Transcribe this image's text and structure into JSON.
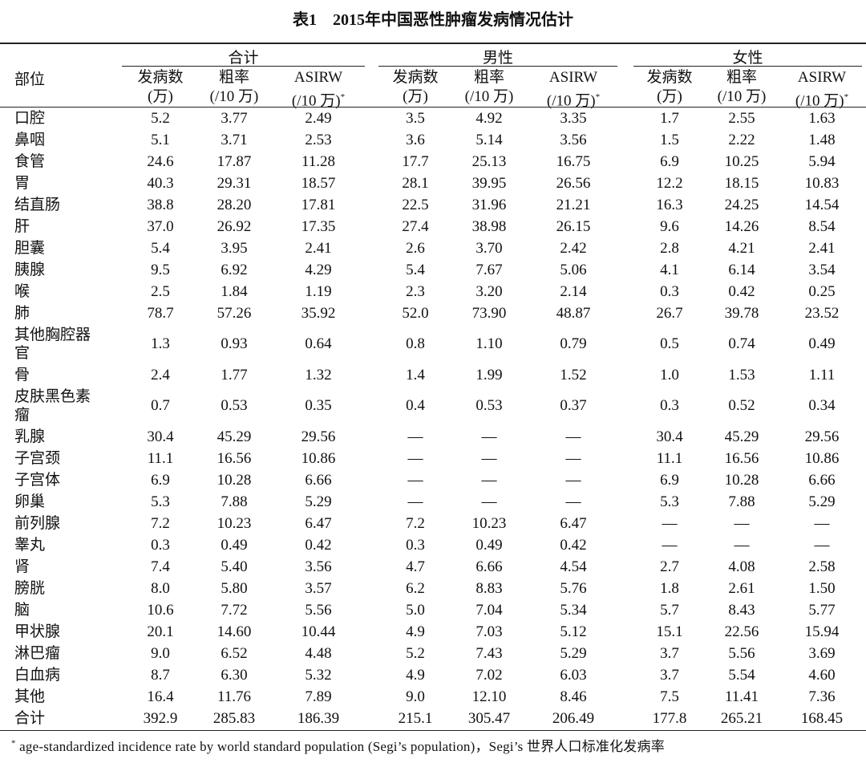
{
  "title": "表1　2015年中国恶性肿瘤发病情况估计",
  "table": {
    "row_header": "部位",
    "groups": [
      "合计",
      "男性",
      "女性"
    ],
    "columns": [
      {
        "top": "发病数",
        "bottom": "(万)"
      },
      {
        "top": "粗率",
        "bottom": "(/10 万)"
      },
      {
        "top": "ASIRW",
        "bottom": "(/10 万)",
        "mark": "*"
      }
    ],
    "rows": [
      {
        "label": "口腔",
        "values": [
          "5.2",
          "3.77",
          "2.49",
          "3.5",
          "4.92",
          "3.35",
          "1.7",
          "2.55",
          "1.63"
        ]
      },
      {
        "label": "鼻咽",
        "values": [
          "5.1",
          "3.71",
          "2.53",
          "3.6",
          "5.14",
          "3.56",
          "1.5",
          "2.22",
          "1.48"
        ]
      },
      {
        "label": "食管",
        "values": [
          "24.6",
          "17.87",
          "11.28",
          "17.7",
          "25.13",
          "16.75",
          "6.9",
          "10.25",
          "5.94"
        ]
      },
      {
        "label": "胃",
        "values": [
          "40.3",
          "29.31",
          "18.57",
          "28.1",
          "39.95",
          "26.56",
          "12.2",
          "18.15",
          "10.83"
        ]
      },
      {
        "label": "结直肠",
        "values": [
          "38.8",
          "28.20",
          "17.81",
          "22.5",
          "31.96",
          "21.21",
          "16.3",
          "24.25",
          "14.54"
        ]
      },
      {
        "label": "肝",
        "values": [
          "37.0",
          "26.92",
          "17.35",
          "27.4",
          "38.98",
          "26.15",
          "9.6",
          "14.26",
          "8.54"
        ]
      },
      {
        "label": "胆囊",
        "values": [
          "5.4",
          "3.95",
          "2.41",
          "2.6",
          "3.70",
          "2.42",
          "2.8",
          "4.21",
          "2.41"
        ]
      },
      {
        "label": "胰腺",
        "values": [
          "9.5",
          "6.92",
          "4.29",
          "5.4",
          "7.67",
          "5.06",
          "4.1",
          "6.14",
          "3.54"
        ]
      },
      {
        "label": "喉",
        "values": [
          "2.5",
          "1.84",
          "1.19",
          "2.3",
          "3.20",
          "2.14",
          "0.3",
          "0.42",
          "0.25"
        ]
      },
      {
        "label": "肺",
        "values": [
          "78.7",
          "57.26",
          "35.92",
          "52.0",
          "73.90",
          "48.87",
          "26.7",
          "39.78",
          "23.52"
        ]
      },
      {
        "label": "其他胸腔器官",
        "values": [
          "1.3",
          "0.93",
          "0.64",
          "0.8",
          "1.10",
          "0.79",
          "0.5",
          "0.74",
          "0.49"
        ]
      },
      {
        "label": "骨",
        "values": [
          "2.4",
          "1.77",
          "1.32",
          "1.4",
          "1.99",
          "1.52",
          "1.0",
          "1.53",
          "1.11"
        ]
      },
      {
        "label": "皮肤黑色素瘤",
        "values": [
          "0.7",
          "0.53",
          "0.35",
          "0.4",
          "0.53",
          "0.37",
          "0.3",
          "0.52",
          "0.34"
        ]
      },
      {
        "label": "乳腺",
        "values": [
          "30.4",
          "45.29",
          "29.56",
          "—",
          "—",
          "—",
          "30.4",
          "45.29",
          "29.56"
        ]
      },
      {
        "label": "子宫颈",
        "values": [
          "11.1",
          "16.56",
          "10.86",
          "—",
          "—",
          "—",
          "11.1",
          "16.56",
          "10.86"
        ]
      },
      {
        "label": "子宫体",
        "values": [
          "6.9",
          "10.28",
          "6.66",
          "—",
          "—",
          "—",
          "6.9",
          "10.28",
          "6.66"
        ]
      },
      {
        "label": "卵巢",
        "values": [
          "5.3",
          "7.88",
          "5.29",
          "—",
          "—",
          "—",
          "5.3",
          "7.88",
          "5.29"
        ]
      },
      {
        "label": "前列腺",
        "values": [
          "7.2",
          "10.23",
          "6.47",
          "7.2",
          "10.23",
          "6.47",
          "—",
          "—",
          "—"
        ]
      },
      {
        "label": "睾丸",
        "values": [
          "0.3",
          "0.49",
          "0.42",
          "0.3",
          "0.49",
          "0.42",
          "—",
          "—",
          "—"
        ]
      },
      {
        "label": "肾",
        "values": [
          "7.4",
          "5.40",
          "3.56",
          "4.7",
          "6.66",
          "4.54",
          "2.7",
          "4.08",
          "2.58"
        ]
      },
      {
        "label": "膀胱",
        "values": [
          "8.0",
          "5.80",
          "3.57",
          "6.2",
          "8.83",
          "5.76",
          "1.8",
          "2.61",
          "1.50"
        ]
      },
      {
        "label": "脑",
        "values": [
          "10.6",
          "7.72",
          "5.56",
          "5.0",
          "7.04",
          "5.34",
          "5.7",
          "8.43",
          "5.77"
        ]
      },
      {
        "label": "甲状腺",
        "values": [
          "20.1",
          "14.60",
          "10.44",
          "4.9",
          "7.03",
          "5.12",
          "15.1",
          "22.56",
          "15.94"
        ]
      },
      {
        "label": "淋巴瘤",
        "values": [
          "9.0",
          "6.52",
          "4.48",
          "5.2",
          "7.43",
          "5.29",
          "3.7",
          "5.56",
          "3.69"
        ]
      },
      {
        "label": "白血病",
        "values": [
          "8.7",
          "6.30",
          "5.32",
          "4.9",
          "7.02",
          "6.03",
          "3.7",
          "5.54",
          "4.60"
        ]
      },
      {
        "label": "其他",
        "values": [
          "16.4",
          "11.76",
          "7.89",
          "9.0",
          "12.10",
          "8.46",
          "7.5",
          "11.41",
          "7.36"
        ]
      },
      {
        "label": "合计",
        "values": [
          "392.9",
          "285.83",
          "186.39",
          "215.1",
          "305.47",
          "206.49",
          "177.8",
          "265.21",
          "168.45"
        ]
      }
    ]
  },
  "footnote": {
    "mark": "*",
    "text": "age-standardized incidence rate by world standard population (Segi’s population)，Segi’s 世界人口标准化发病率"
  }
}
